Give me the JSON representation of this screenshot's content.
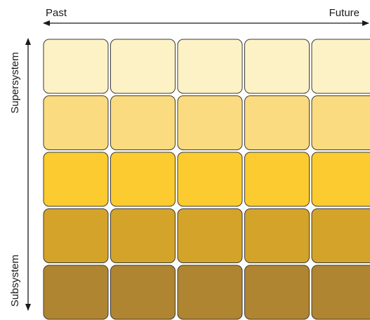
{
  "time_axis": {
    "start_label": "Past",
    "end_label": "Future"
  },
  "system_axis": {
    "top_label": "Supersystem",
    "bottom_label": "Subsystem"
  },
  "grid": {
    "columns": 5,
    "row_colors": [
      "#FDF1C6",
      "#FADB7F",
      "#FCCB2F",
      "#D4A32A",
      "#B08531"
    ]
  }
}
